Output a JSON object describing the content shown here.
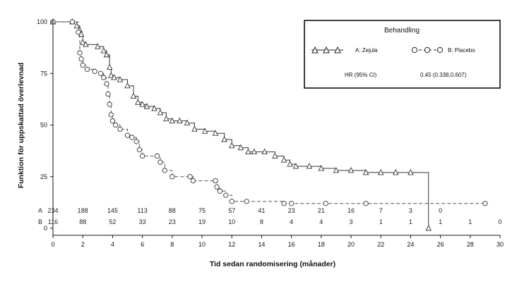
{
  "chart_data": {
    "type": "line",
    "subtype": "kaplan-meier",
    "xlabel": "Tid sedan randomisering (månader)",
    "ylabel": "Funktion för uppskattad överlevnad",
    "xlim": [
      0,
      30
    ],
    "ylim": [
      0,
      100
    ],
    "xticks": [
      0,
      2,
      4,
      6,
      8,
      10,
      12,
      14,
      16,
      18,
      20,
      22,
      24,
      26,
      28,
      30
    ],
    "yticks": [
      0,
      25,
      50,
      75,
      100
    ],
    "legend": {
      "title": "Behandling",
      "entries": [
        "A: Zejula",
        "B: Placebo"
      ],
      "hr_label": "HR (95% CI)",
      "hr_value": "0.45 (0.338,0.607)"
    },
    "series": [
      {
        "name": "A: Zejula",
        "marker": "triangle",
        "line": "solid",
        "x": [
          0,
          1.3,
          1.6,
          1.8,
          1.9,
          2.0,
          2.2,
          3.0,
          3.4,
          3.6,
          3.8,
          3.9,
          4.1,
          4.5,
          5.0,
          5.4,
          5.7,
          6.0,
          6.3,
          6.8,
          7.2,
          7.6,
          8.0,
          8.5,
          9.0,
          9.5,
          10.2,
          10.9,
          11.5,
          12.0,
          12.6,
          13.1,
          13.5,
          14.2,
          14.9,
          15.5,
          15.9,
          16.3,
          17.2,
          18.0,
          19.0,
          20.0,
          21.0,
          22.0,
          23.0,
          24.0,
          25.2
        ],
        "y": [
          100,
          100,
          98,
          96,
          94,
          90,
          89,
          88,
          86,
          84,
          78,
          74,
          73,
          72,
          69,
          64,
          61,
          60,
          59,
          58,
          56,
          53,
          52,
          52,
          51,
          48,
          47,
          46,
          43,
          40,
          39,
          37,
          37,
          37,
          35,
          33,
          31,
          30,
          30,
          29,
          28,
          28,
          27,
          27,
          27,
          27,
          0
        ]
      },
      {
        "name": "B: Placebo",
        "marker": "circle",
        "line": "dashed",
        "x": [
          0,
          1.3,
          1.7,
          1.8,
          1.9,
          2.0,
          2.3,
          2.8,
          3.2,
          3.4,
          3.6,
          3.7,
          3.8,
          3.9,
          4.0,
          4.2,
          4.5,
          5.0,
          5.3,
          5.6,
          5.8,
          6.0,
          7.0,
          7.2,
          7.5,
          8.0,
          9.2,
          9.4,
          10.9,
          11.0,
          11.2,
          11.6,
          12.0,
          13.0,
          15.5,
          16.0,
          18.3,
          21.0,
          29.0
        ],
        "y": [
          100,
          100,
          95,
          85,
          82,
          79,
          77,
          76,
          75,
          73,
          70,
          65,
          60,
          55,
          52,
          50,
          48,
          45,
          44,
          42,
          38,
          35,
          35,
          32,
          28,
          25,
          25,
          23,
          23,
          20,
          18,
          16,
          13,
          13,
          12,
          12,
          12,
          12,
          12
        ]
      }
    ],
    "risk_table": {
      "times": [
        0,
        2,
        4,
        6,
        8,
        10,
        12,
        14,
        16,
        18,
        20,
        22,
        24,
        26,
        28,
        30
      ],
      "rows": [
        {
          "label": "A",
          "counts": [
            "234",
            "188",
            "145",
            "113",
            "88",
            "75",
            "57",
            "41",
            "23",
            "21",
            "16",
            "7",
            "3",
            "0"
          ]
        },
        {
          "label": "B",
          "counts": [
            "116",
            "88",
            "52",
            "33",
            "23",
            "19",
            "10",
            "8",
            "4",
            "4",
            "3",
            "1",
            "1",
            "1",
            "1",
            "0"
          ]
        }
      ]
    }
  }
}
